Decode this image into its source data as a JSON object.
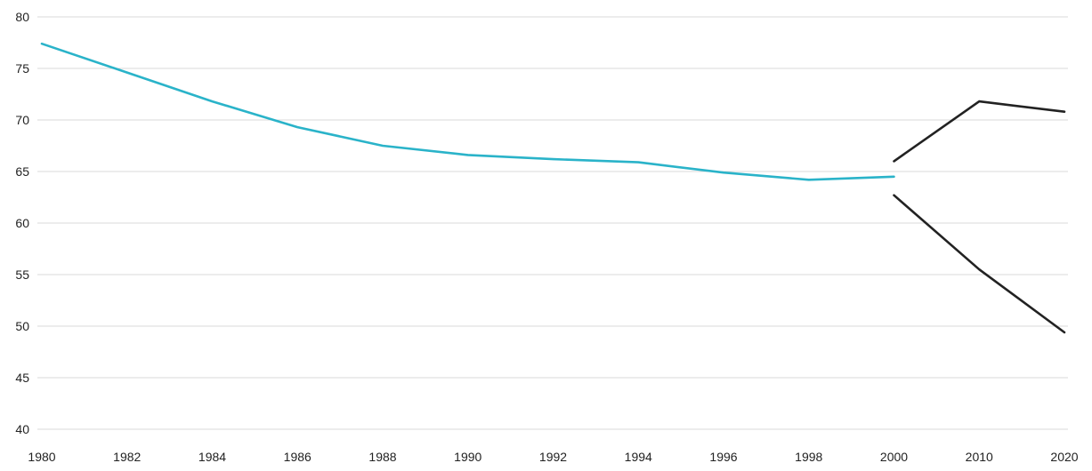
{
  "chart_data": {
    "type": "line",
    "title": "",
    "xlabel": "",
    "ylabel": "",
    "ylim": [
      40,
      80
    ],
    "yticks": [
      40,
      45,
      50,
      55,
      60,
      65,
      70,
      75,
      80
    ],
    "x": [
      "1980",
      "1982",
      "1984",
      "1986",
      "1988",
      "1990",
      "1992",
      "1994",
      "1996",
      "1998",
      "2000",
      "2010",
      "2020"
    ],
    "grid": true,
    "legend": "none",
    "series": [
      {
        "color": "#2ab3c9",
        "points": [
          [
            "1980",
            77.4
          ],
          [
            "1982",
            74.6
          ],
          [
            "1984",
            71.8
          ],
          [
            "1986",
            69.3
          ],
          [
            "1988",
            67.5
          ],
          [
            "1990",
            66.6
          ],
          [
            "1992",
            66.2
          ],
          [
            "1994",
            65.9
          ],
          [
            "1996",
            64.9
          ],
          [
            "1998",
            64.2
          ],
          [
            "2000",
            64.5
          ]
        ]
      },
      {
        "color": "#222222",
        "points": [
          [
            "2000",
            66.0
          ],
          [
            "2010",
            71.8
          ],
          [
            "2020",
            70.8
          ]
        ]
      },
      {
        "color": "#222222",
        "points": [
          [
            "2000",
            62.7
          ],
          [
            "2010",
            55.5
          ],
          [
            "2020",
            49.4
          ]
        ]
      }
    ]
  }
}
